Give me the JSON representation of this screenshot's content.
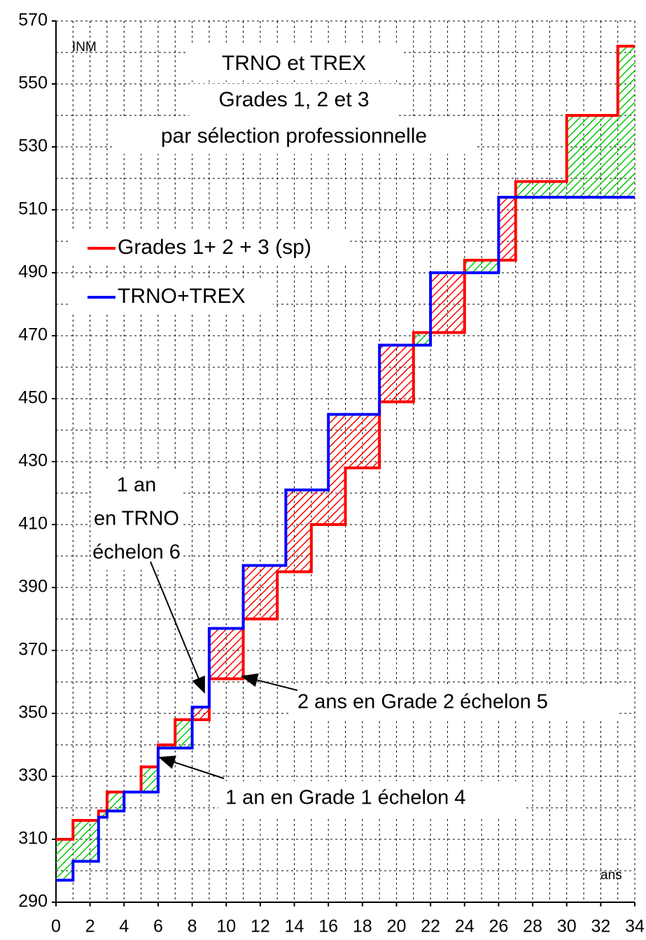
{
  "chart_data": {
    "type": "step",
    "title_lines": [
      "TRNO et TREX",
      "Grades 1, 2 et 3",
      "par sélection professionnelle"
    ],
    "ylabel": "INM",
    "xlabel": "ans",
    "series": [
      {
        "name": "Grades 1+ 2 + 3 (sp)",
        "color": "#ff0000",
        "x": [
          0,
          1,
          2.5,
          3,
          5,
          6,
          7,
          8,
          9,
          11,
          13,
          15,
          17,
          19,
          21,
          24,
          27,
          30,
          33
        ],
        "values": [
          310,
          316,
          319,
          325,
          333,
          340,
          348,
          348,
          361,
          380,
          395,
          410,
          428,
          449,
          471,
          494,
          519,
          540,
          562
        ]
      },
      {
        "name": "TRNO+TREX",
        "color": "#0000ff",
        "x": [
          0,
          1,
          2.5,
          3,
          4,
          6,
          8,
          9,
          11,
          13.5,
          16,
          19,
          22,
          26
        ],
        "values": [
          297,
          303,
          317,
          319,
          325,
          339,
          352,
          377,
          397,
          421,
          445,
          467,
          490,
          514
        ]
      }
    ],
    "hatch_colors": {
      "above": "#00cc00",
      "below": "#ff0000"
    },
    "annotations": [
      {
        "lines": [
          "1 an",
          "en TRNO",
          "échelon 6"
        ]
      },
      {
        "lines": [
          "2 ans en Grade 2 échelon 5"
        ]
      },
      {
        "lines": [
          "1 an en Grade 1 échelon 4"
        ]
      }
    ],
    "xlim": [
      0,
      34
    ],
    "xticks": [
      0,
      2,
      4,
      6,
      8,
      10,
      12,
      14,
      16,
      18,
      20,
      22,
      24,
      26,
      28,
      30,
      32,
      34
    ],
    "ylim": [
      290,
      570
    ],
    "yticks": [
      290,
      310,
      330,
      350,
      370,
      390,
      410,
      430,
      450,
      470,
      490,
      510,
      530,
      550,
      570
    ],
    "grid": true
  }
}
